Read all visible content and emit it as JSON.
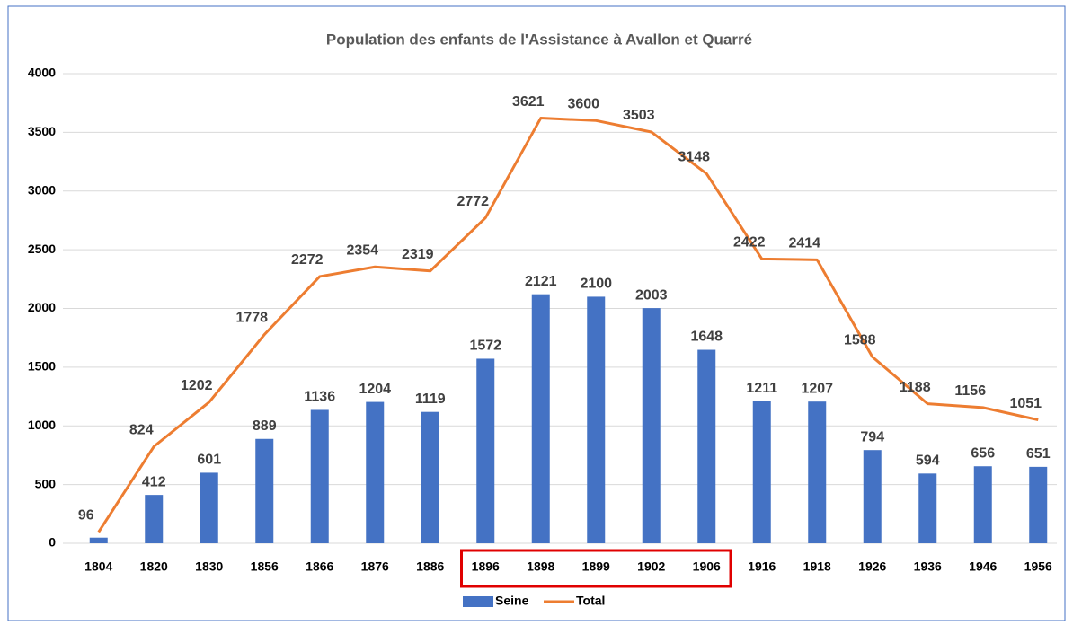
{
  "chart_data": {
    "type": "bar+line",
    "title": "Population des enfants de l'Assistance à Avallon et Quarré",
    "categories": [
      "1804",
      "1820",
      "1830",
      "1856",
      "1866",
      "1876",
      "1886",
      "1896",
      "1898",
      "1899",
      "1902",
      "1906",
      "1916",
      "1918",
      "1926",
      "1936",
      "1946",
      "1956"
    ],
    "series": [
      {
        "name": "Seine",
        "type": "bar",
        "color": "#4472c4",
        "values": [
          48,
          412,
          601,
          889,
          1136,
          1204,
          1119,
          1572,
          2121,
          2100,
          2003,
          1648,
          1211,
          1207,
          794,
          594,
          656,
          651
        ],
        "value_labels": [
          null,
          "412",
          "601",
          "889",
          "1136",
          "1204",
          "1119",
          "1572",
          "2121",
          "2100",
          "2003",
          "1648",
          "1211",
          "1207",
          "794",
          "594",
          "656",
          "651"
        ]
      },
      {
        "name": "Total",
        "type": "line",
        "color": "#ed7d31",
        "values": [
          96,
          824,
          1202,
          1778,
          2272,
          2354,
          2319,
          2772,
          3621,
          3600,
          3503,
          3148,
          2422,
          2414,
          1588,
          1188,
          1156,
          1051
        ],
        "value_labels": [
          "96",
          "824",
          "1202",
          "1778",
          "2272",
          "2354",
          "2319",
          "2772",
          "3621",
          "3600",
          "3503",
          "3148",
          "2422",
          "2414",
          "1588",
          "1188",
          "1156",
          "1051"
        ]
      }
    ],
    "ylim": [
      0,
      4000
    ],
    "yticks": [
      0,
      500,
      1000,
      1500,
      2000,
      2500,
      3000,
      3500,
      4000
    ],
    "grid": true,
    "legend": "bottom"
  }
}
